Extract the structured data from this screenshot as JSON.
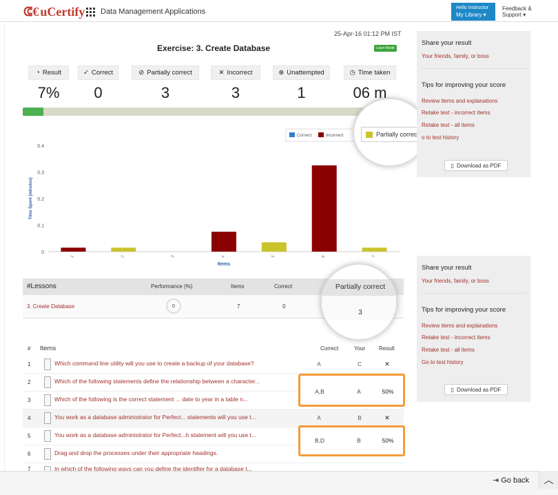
{
  "header": {
    "logo": "uCertify",
    "app_title": "Data Management Applications",
    "instructor_greeting": "Hello Instructor",
    "library_label": "My Library ▾",
    "feedback_line1": "Feedback &",
    "feedback_line2": "Support ▾"
  },
  "exercise": {
    "date": "25-Apr-16 01:12 PM IST",
    "title": "Exercise: 3. Create Database",
    "mode_badge": "Learn Mode"
  },
  "stats": [
    {
      "label": "Result",
      "value": "7%",
      "icon": "result-icon"
    },
    {
      "label": "Correct",
      "value": "0",
      "icon": "check-icon"
    },
    {
      "label": "Partially correct",
      "value": "3",
      "icon": "partial-check-icon"
    },
    {
      "label": "Incorrect",
      "value": "3",
      "icon": "x-icon"
    },
    {
      "label": "Unattempted",
      "value": "1",
      "icon": "eye-slash-icon"
    },
    {
      "label": "Time taken",
      "value": "06 m",
      "icon": "clock-icon"
    }
  ],
  "progress": {
    "result_fraction": 0.07
  },
  "chart_data": {
    "type": "bar",
    "xlabel": "Items",
    "ylabel": "Time Spent (minutes)",
    "categories": [
      "1",
      "2",
      "3",
      "4",
      "5",
      "6",
      "7"
    ],
    "ylim": [
      0,
      0.4
    ],
    "yticks": [
      "0",
      "0.1",
      "0.2",
      "0.3",
      "0.4"
    ],
    "legend": [
      "Correct",
      "Incorrect",
      "Partially correct"
    ],
    "legend_placement": "top-right",
    "colors": {
      "Correct": "#2f7fd0",
      "Incorrect": "#8b0000",
      "Partially correct": "#c9c42c"
    },
    "bars": [
      {
        "item": "1",
        "value": 0.015,
        "status": "Incorrect"
      },
      {
        "item": "2",
        "value": 0.015,
        "status": "Partially correct"
      },
      {
        "item": "3",
        "value": 0,
        "status": "Unattempted"
      },
      {
        "item": "4",
        "value": 0.075,
        "status": "Incorrect"
      },
      {
        "item": "5",
        "value": 0.035,
        "status": "Partially correct"
      },
      {
        "item": "6",
        "value": 0.325,
        "status": "Incorrect"
      },
      {
        "item": "7",
        "value": 0.015,
        "status": "Partially correct"
      }
    ]
  },
  "magnifier_legend": {
    "label": "Partially correct"
  },
  "sidebar": {
    "share_title": "Share your result",
    "share_link": "Your friends, family, or boss",
    "tips_title": "Tips for improving your score",
    "links": [
      "Review items and explanations",
      "Retake test - incorrect items",
      "Retake test - all items",
      "Go to test history"
    ],
    "pdf_label": "Download as PDF"
  },
  "sidebar_top_links": [
    "Review items and explanations",
    "Retake test - incorrect items",
    "Retake test - all items",
    "o to test history"
  ],
  "lessons": {
    "headers": {
      "lesson": "#Lessons",
      "performance": "Performance (%)",
      "items": "Items",
      "correct": "Correct",
      "partial": "Partially correct"
    },
    "row": {
      "name": "3. Create Database",
      "performance": "0",
      "items": "7",
      "correct": "0",
      "partial": "3"
    }
  },
  "items": {
    "headers": {
      "num": "#",
      "items": "Items",
      "correct": "Correct",
      "your": "Your",
      "result": "Result"
    },
    "rows": [
      {
        "num": "1",
        "question": "Which command line utility will you use to create a backup of your database?",
        "correct": "A",
        "your": "C",
        "result": "✕"
      },
      {
        "num": "2",
        "question": "Which of the following statements define the relationship between a character...",
        "correct": "A,B",
        "your": "A",
        "result": "50%"
      },
      {
        "num": "3",
        "question": "Which of the following is the correct statement ... date to year in a table n...",
        "correct": "",
        "your": "",
        "result": ""
      },
      {
        "num": "4",
        "question": "You work as a database administrator for Perfect... statements will you use t...",
        "correct": "A",
        "your": "B",
        "result": "✕"
      },
      {
        "num": "5",
        "question": "You work as a database administrator for Perfect...h statement will you use t...",
        "correct": "B,D",
        "your": "B",
        "result": "50%"
      },
      {
        "num": "6",
        "question": "Drag and drop the processes under their appropriate headings.",
        "correct": "",
        "your": "",
        "result": ""
      },
      {
        "num": "7",
        "question": "In which of the following ways can you define the identifier for a database t...",
        "correct": "",
        "your": "",
        "result": ""
      }
    ]
  },
  "footer": {
    "go_back": "Go back"
  }
}
